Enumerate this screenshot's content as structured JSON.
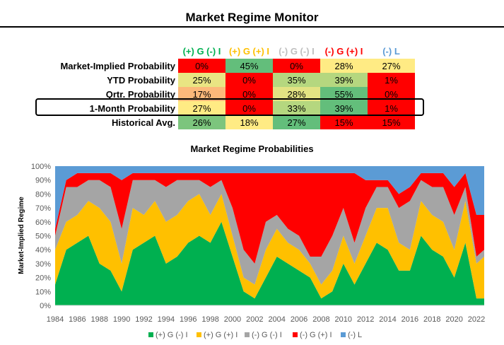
{
  "title": "Market Regime Monitor",
  "table": {
    "headers": [
      {
        "label": "(+) G (-) I",
        "color": "#00b050"
      },
      {
        "label": "(+) G (+) I",
        "color": "#ffc000"
      },
      {
        "label": "(-) G (-) I",
        "color": "#bfbfbf"
      },
      {
        "label": "(-) G (+) I",
        "color": "#ff0000"
      },
      {
        "label": "(-) L",
        "color": "#5b9bd5"
      }
    ],
    "rows": [
      {
        "label": "Market-Implied Probability",
        "values": [
          "0%",
          "45%",
          "0%",
          "28%",
          "27%"
        ],
        "colors": [
          "#ff0000",
          "#63be7b",
          "#ff0000",
          "#ffeb84",
          "#ffeb84"
        ]
      },
      {
        "label": "YTD Probability",
        "values": [
          "25%",
          "0%",
          "35%",
          "39%",
          "1%"
        ],
        "colors": [
          "#e9e583",
          "#ff0000",
          "#b5d77f",
          "#b5d77f",
          "#ff0000"
        ]
      },
      {
        "label": "Qrtr. Probability",
        "values": [
          "17%",
          "0%",
          "28%",
          "55%",
          "0%"
        ],
        "colors": [
          "#fcb97a",
          "#ff0000",
          "#e3e383",
          "#63be7b",
          "#ff0000"
        ]
      },
      {
        "label": "1-Month Probability",
        "values": [
          "27%",
          "0%",
          "33%",
          "39%",
          "1%"
        ],
        "colors": [
          "#ffeb84",
          "#ff0000",
          "#b5d77f",
          "#63be7b",
          "#ff0000"
        ]
      },
      {
        "label": "Historical Avg.",
        "values": [
          "26%",
          "18%",
          "27%",
          "15%",
          "15%"
        ],
        "colors": [
          "#7cc57d",
          "#ffeb84",
          "#63be7b",
          "#ff0000",
          "#ff0000"
        ]
      }
    ]
  },
  "chart_data": {
    "type": "area",
    "title": "Market Regime Probabilities",
    "ylabel": "Market-Implied Regime",
    "xlabel": "",
    "ylim": [
      0,
      100
    ],
    "xlim": [
      1984,
      2022.7
    ],
    "yticks": [
      "0%",
      "10%",
      "20%",
      "30%",
      "40%",
      "50%",
      "60%",
      "70%",
      "80%",
      "90%",
      "100%"
    ],
    "xticks": [
      "1984",
      "1986",
      "1988",
      "1990",
      "1992",
      "1994",
      "1996",
      "1998",
      "2000",
      "2002",
      "2004",
      "2006",
      "2008",
      "2010",
      "2012",
      "2014",
      "2016",
      "2018",
      "2020",
      "2022"
    ],
    "x": [
      1984,
      1985,
      1986,
      1987,
      1988,
      1989,
      1990,
      1991,
      1992,
      1993,
      1994,
      1995,
      1996,
      1997,
      1998,
      1999,
      2000,
      2001,
      2002,
      2003,
      2004,
      2005,
      2006,
      2007,
      2008,
      2009,
      2010,
      2011,
      2012,
      2013,
      2014,
      2015,
      2016,
      2017,
      2018,
      2019,
      2020,
      2021,
      2022,
      2022.7
    ],
    "series": [
      {
        "name": "(+) G (-) I",
        "color": "#00b050",
        "values": [
          15,
          40,
          45,
          50,
          30,
          25,
          10,
          40,
          45,
          50,
          30,
          35,
          45,
          50,
          45,
          60,
          35,
          10,
          5,
          20,
          35,
          30,
          25,
          20,
          5,
          10,
          30,
          15,
          30,
          45,
          40,
          25,
          25,
          50,
          40,
          35,
          20,
          45,
          5,
          5
        ]
      },
      {
        "name": "(+) G (+) I",
        "color": "#ffc000",
        "values": [
          25,
          20,
          20,
          25,
          40,
          35,
          20,
          30,
          20,
          25,
          30,
          30,
          30,
          30,
          20,
          20,
          15,
          10,
          10,
          20,
          20,
          15,
          15,
          10,
          10,
          15,
          20,
          15,
          20,
          25,
          30,
          20,
          15,
          25,
          25,
          25,
          20,
          30,
          25,
          30
        ]
      },
      {
        "name": "(-) G (-) I",
        "color": "#a5a5a5",
        "values": [
          10,
          25,
          20,
          15,
          20,
          25,
          25,
          20,
          25,
          15,
          25,
          25,
          15,
          10,
          20,
          10,
          20,
          20,
          15,
          20,
          10,
          10,
          10,
          5,
          20,
          25,
          20,
          15,
          20,
          15,
          15,
          25,
          35,
          15,
          20,
          25,
          25,
          10,
          5,
          5
        ]
      },
      {
        "name": "(-) G (+) I",
        "color": "#ff0000",
        "values": [
          5,
          5,
          10,
          5,
          5,
          10,
          35,
          5,
          5,
          5,
          10,
          5,
          5,
          5,
          10,
          5,
          25,
          55,
          65,
          35,
          30,
          40,
          45,
          60,
          60,
          45,
          25,
          50,
          20,
          5,
          5,
          10,
          10,
          5,
          10,
          10,
          20,
          10,
          30,
          25
        ]
      },
      {
        "name": "(-) L",
        "color": "#5b9bd5",
        "values": [
          45,
          10,
          5,
          5,
          5,
          5,
          10,
          5,
          5,
          5,
          5,
          5,
          5,
          5,
          5,
          5,
          5,
          5,
          5,
          5,
          5,
          5,
          5,
          5,
          5,
          5,
          5,
          5,
          10,
          10,
          10,
          20,
          15,
          5,
          5,
          5,
          15,
          5,
          35,
          35
        ]
      }
    ],
    "legend": "bottom"
  }
}
